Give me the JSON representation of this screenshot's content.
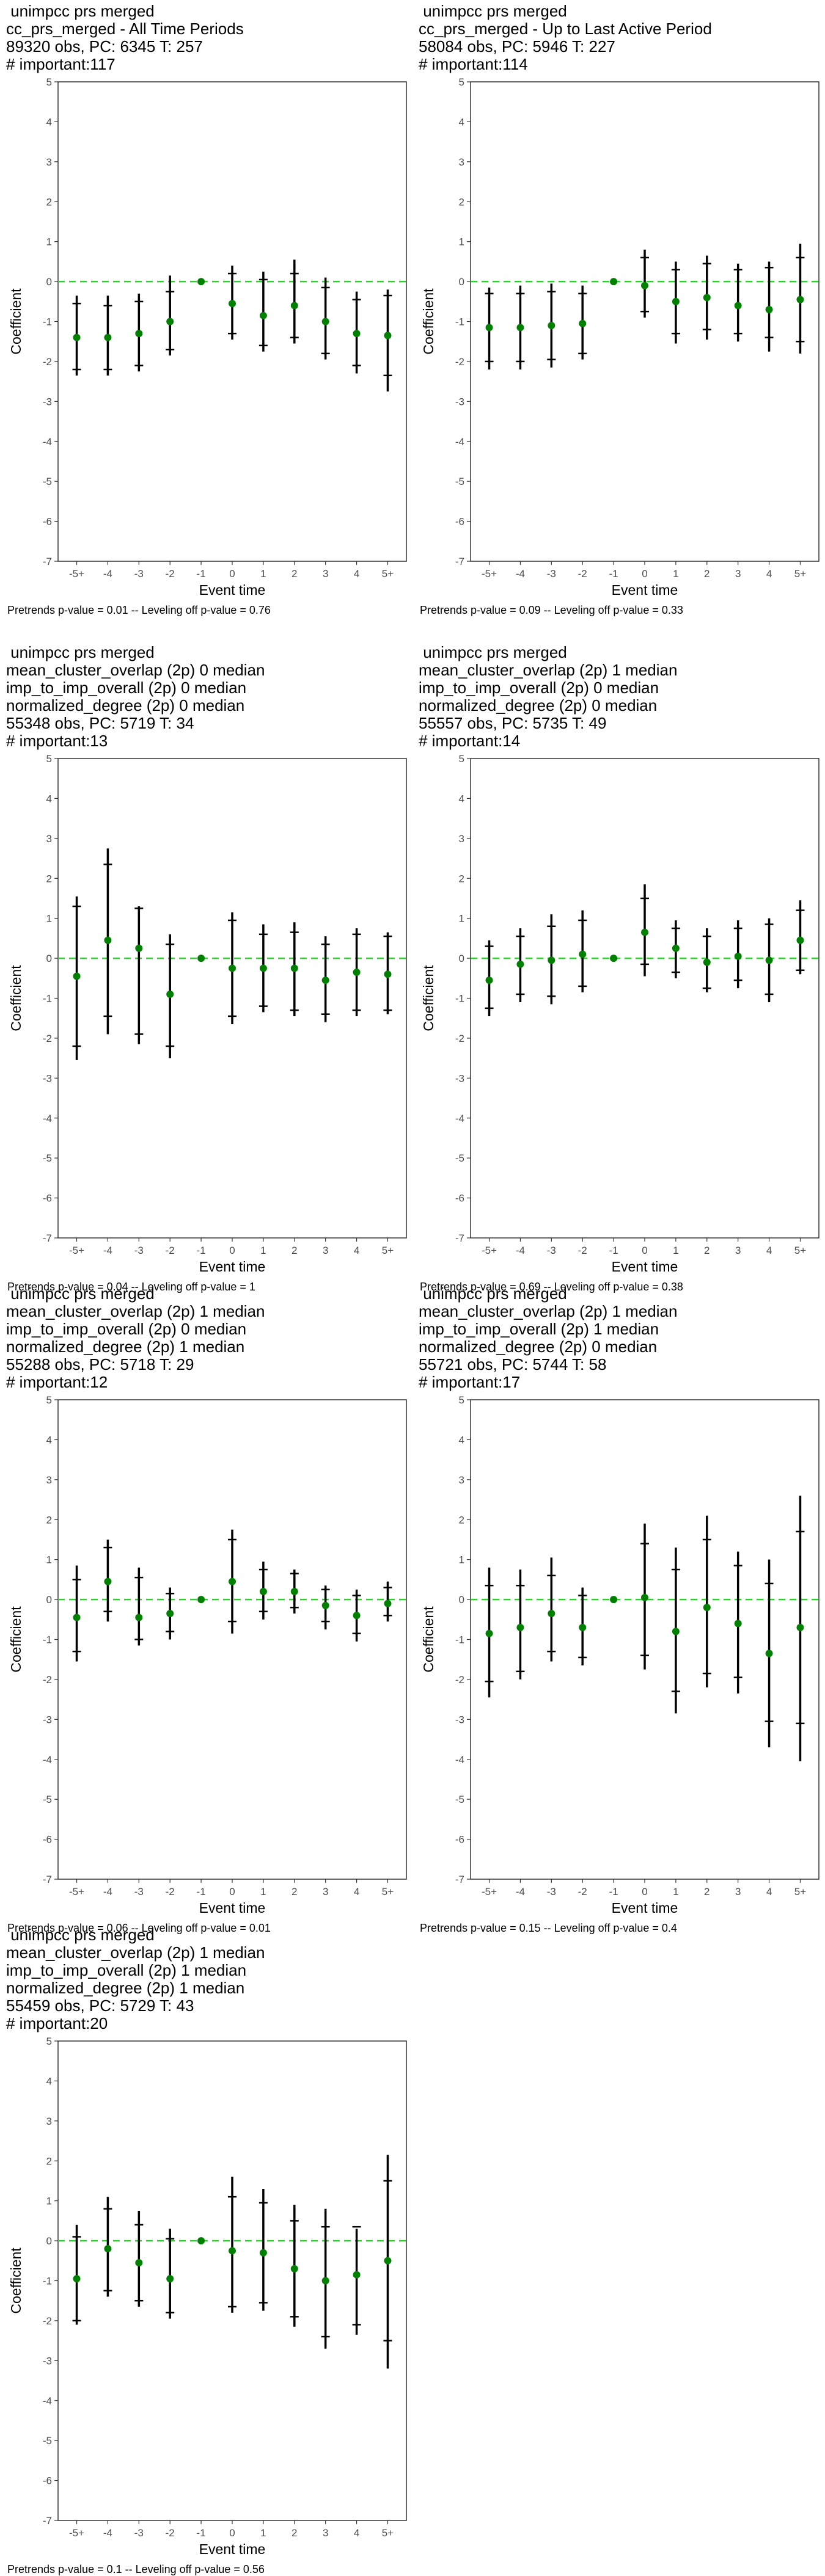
{
  "chart_data": [
    {
      "type": "errorbar",
      "title_lines": [
        " unimpcc prs merged",
        "cc_prs_merged - All Time Periods",
        "89320 obs, PC: 6345 T: 257",
        "# important:117"
      ],
      "xlabel": "Event time",
      "ylabel": "Coefficient",
      "categories": [
        "-5+",
        "-4",
        "-3",
        "-2",
        "-1",
        "0",
        "1",
        "2",
        "3",
        "4",
        "5+"
      ],
      "ylim": [
        -7,
        5
      ],
      "yticks": [
        "-7",
        "-6",
        "-5",
        "-4",
        "-3",
        "-2",
        "-1",
        "0",
        "1",
        "2",
        "3",
        "4",
        "5"
      ],
      "estimates": [
        -1.4,
        -1.4,
        -1.3,
        -1.0,
        0,
        -0.55,
        -0.85,
        -0.6,
        -1.0,
        -1.3,
        -1.35
      ],
      "ci90_low": [
        -2.2,
        -2.2,
        -2.1,
        -1.7,
        0,
        -1.3,
        -1.6,
        -1.4,
        -1.8,
        -2.1,
        -2.35
      ],
      "ci90_high": [
        -0.55,
        -0.6,
        -0.5,
        -0.25,
        0,
        0.2,
        0.05,
        0.2,
        -0.15,
        -0.45,
        -0.35
      ],
      "ci95_low": [
        -2.35,
        -2.35,
        -2.25,
        -1.85,
        0,
        -1.45,
        -1.75,
        -1.55,
        -1.95,
        -2.3,
        -2.75
      ],
      "ci95_high": [
        -0.35,
        -0.35,
        -0.3,
        0.15,
        0,
        0.4,
        0.25,
        0.55,
        0.1,
        -0.25,
        -0.2
      ],
      "reference_line": 0,
      "grid": false,
      "legend": "none",
      "point_color": "#008000",
      "bar_color": "#000000",
      "reference_color": "#33cc33",
      "footnote": "Pretrends p-value = 0.01 -- Leveling off p-value = 0.76"
    },
    {
      "type": "errorbar",
      "title_lines": [
        " unimpcc prs merged",
        "cc_prs_merged - Up to Last Active Period",
        "58084 obs, PC: 5946 T: 227",
        "# important:114"
      ],
      "xlabel": "Event time",
      "ylabel": "Coefficient",
      "categories": [
        "-5+",
        "-4",
        "-3",
        "-2",
        "-1",
        "0",
        "1",
        "2",
        "3",
        "4",
        "5+"
      ],
      "ylim": [
        -7,
        5
      ],
      "yticks": [
        "-7",
        "-6",
        "-5",
        "-4",
        "-3",
        "-2",
        "-1",
        "0",
        "1",
        "2",
        "3",
        "4",
        "5"
      ],
      "estimates": [
        -1.15,
        -1.15,
        -1.1,
        -1.05,
        0,
        -0.1,
        -0.5,
        -0.4,
        -0.6,
        -0.7,
        -0.45
      ],
      "ci90_low": [
        -2.0,
        -2.0,
        -1.95,
        -1.8,
        0,
        -0.75,
        -1.3,
        -1.2,
        -1.3,
        -1.4,
        -1.5
      ],
      "ci90_high": [
        -0.3,
        -0.3,
        -0.25,
        -0.3,
        0,
        0.6,
        0.3,
        0.45,
        0.3,
        0.35,
        0.6
      ],
      "ci95_low": [
        -2.2,
        -2.2,
        -2.15,
        -1.95,
        0,
        -0.9,
        -1.55,
        -1.45,
        -1.5,
        -1.75,
        -1.8
      ],
      "ci95_high": [
        -0.15,
        -0.1,
        -0.05,
        -0.1,
        0,
        0.8,
        0.5,
        0.65,
        0.45,
        0.5,
        0.95
      ],
      "reference_line": 0,
      "grid": false,
      "legend": "none",
      "point_color": "#008000",
      "bar_color": "#000000",
      "reference_color": "#33cc33",
      "footnote": "Pretrends p-value = 0.09 -- Leveling off p-value = 0.33"
    },
    {
      "type": "errorbar",
      "title_lines": [
        " unimpcc prs merged",
        "mean_cluster_overlap (2p) 0 median",
        "imp_to_imp_overall (2p) 0 median",
        "normalized_degree (2p) 0 median",
        "55348 obs, PC: 5719 T: 34",
        "# important:13"
      ],
      "xlabel": "Event time",
      "ylabel": "Coefficient",
      "categories": [
        "-5+",
        "-4",
        "-3",
        "-2",
        "-1",
        "0",
        "1",
        "2",
        "3",
        "4",
        "5+"
      ],
      "ylim": [
        -7,
        5
      ],
      "yticks": [
        "-7",
        "-6",
        "-5",
        "-4",
        "-3",
        "-2",
        "-1",
        "0",
        "1",
        "2",
        "3",
        "4",
        "5"
      ],
      "estimates": [
        -0.45,
        0.45,
        0.25,
        -0.9,
        0,
        -0.25,
        -0.25,
        -0.25,
        -0.55,
        -0.35,
        -0.4
      ],
      "ci90_low": [
        -2.2,
        -1.45,
        -1.9,
        -2.2,
        0,
        -1.45,
        -1.2,
        -1.3,
        -1.4,
        -1.3,
        -1.3
      ],
      "ci90_high": [
        1.3,
        2.35,
        1.25,
        0.35,
        0,
        0.95,
        0.6,
        0.65,
        0.35,
        0.6,
        0.55
      ],
      "ci95_low": [
        -2.55,
        -1.9,
        -2.15,
        -2.5,
        0,
        -1.65,
        -1.35,
        -1.45,
        -1.6,
        -1.45,
        -1.4
      ],
      "ci95_high": [
        1.55,
        2.75,
        1.3,
        0.6,
        0,
        1.15,
        0.85,
        0.9,
        0.55,
        0.75,
        0.65
      ],
      "reference_line": 0,
      "grid": false,
      "legend": "none",
      "point_color": "#008000",
      "bar_color": "#000000",
      "reference_color": "#33cc33",
      "footnote": "Pretrends p-value = 0.04 -- Leveling off p-value = 1"
    },
    {
      "type": "errorbar",
      "title_lines": [
        " unimpcc prs merged",
        "mean_cluster_overlap (2p) 1 median",
        "imp_to_imp_overall (2p) 0 median",
        "normalized_degree (2p) 0 median",
        "55557 obs, PC: 5735 T: 49",
        "# important:14"
      ],
      "xlabel": "Event time",
      "ylabel": "Coefficient",
      "categories": [
        "-5+",
        "-4",
        "-3",
        "-2",
        "-1",
        "0",
        "1",
        "2",
        "3",
        "4",
        "5+"
      ],
      "ylim": [
        -7,
        5
      ],
      "yticks": [
        "-7",
        "-6",
        "-5",
        "-4",
        "-3",
        "-2",
        "-1",
        "0",
        "1",
        "2",
        "3",
        "4",
        "5"
      ],
      "estimates": [
        -0.55,
        -0.15,
        -0.05,
        0.1,
        0,
        0.65,
        0.25,
        -0.1,
        0.05,
        -0.05,
        0.45
      ],
      "ci90_low": [
        -1.25,
        -0.9,
        -0.95,
        -0.7,
        0,
        -0.15,
        -0.35,
        -0.75,
        -0.55,
        -0.9,
        -0.3
      ],
      "ci90_high": [
        0.3,
        0.55,
        0.8,
        0.95,
        0,
        1.5,
        0.75,
        0.55,
        0.75,
        0.85,
        1.2
      ],
      "ci95_low": [
        -1.45,
        -1.1,
        -1.15,
        -0.85,
        0,
        -0.45,
        -0.5,
        -0.85,
        -0.75,
        -1.1,
        -0.4
      ],
      "ci95_high": [
        0.45,
        0.75,
        1.1,
        1.2,
        0,
        1.85,
        0.95,
        0.75,
        0.95,
        1.0,
        1.45
      ],
      "reference_line": 0,
      "grid": false,
      "legend": "none",
      "point_color": "#008000",
      "bar_color": "#000000",
      "reference_color": "#33cc33",
      "footnote": "Pretrends p-value = 0.69 -- Leveling off p-value = 0.38"
    },
    {
      "type": "errorbar",
      "title_lines": [
        " unimpcc prs merged",
        "mean_cluster_overlap (2p) 1 median",
        "imp_to_imp_overall (2p) 0 median",
        "normalized_degree (2p) 1 median",
        "55288 obs, PC: 5718 T: 29",
        "# important:12"
      ],
      "xlabel": "Event time",
      "ylabel": "Coefficient",
      "categories": [
        "-5+",
        "-4",
        "-3",
        "-2",
        "-1",
        "0",
        "1",
        "2",
        "3",
        "4",
        "5+"
      ],
      "ylim": [
        -7,
        5
      ],
      "yticks": [
        "-7",
        "-6",
        "-5",
        "-4",
        "-3",
        "-2",
        "-1",
        "0",
        "1",
        "2",
        "3",
        "4",
        "5"
      ],
      "estimates": [
        -0.45,
        0.45,
        -0.45,
        -0.35,
        0,
        0.45,
        0.2,
        0.2,
        -0.15,
        -0.4,
        -0.1
      ],
      "ci90_low": [
        -1.3,
        -0.3,
        -1.0,
        -0.8,
        0,
        -0.55,
        -0.3,
        -0.2,
        -0.55,
        -0.85,
        -0.4
      ],
      "ci90_high": [
        0.5,
        1.3,
        0.55,
        0.15,
        0,
        1.5,
        0.75,
        0.65,
        0.25,
        0.1,
        0.3
      ],
      "ci95_low": [
        -1.55,
        -0.55,
        -1.15,
        -1.0,
        0,
        -0.85,
        -0.5,
        -0.35,
        -0.75,
        -1.05,
        -0.55
      ],
      "ci95_high": [
        0.85,
        1.5,
        0.8,
        0.3,
        0,
        1.75,
        0.95,
        0.75,
        0.35,
        0.25,
        0.45
      ],
      "reference_line": 0,
      "grid": false,
      "legend": "none",
      "point_color": "#008000",
      "bar_color": "#000000",
      "reference_color": "#33cc33",
      "footnote": "Pretrends p-value = 0.06 -- Leveling off p-value = 0.01"
    },
    {
      "type": "errorbar",
      "title_lines": [
        " unimpcc prs merged",
        "mean_cluster_overlap (2p) 1 median",
        "imp_to_imp_overall (2p) 1 median",
        "normalized_degree (2p) 0 median",
        "55721 obs, PC: 5744 T: 58",
        "# important:17"
      ],
      "xlabel": "Event time",
      "ylabel": "Coefficient",
      "categories": [
        "-5+",
        "-4",
        "-3",
        "-2",
        "-1",
        "0",
        "1",
        "2",
        "3",
        "4",
        "5+"
      ],
      "ylim": [
        -7,
        5
      ],
      "yticks": [
        "-7",
        "-6",
        "-5",
        "-4",
        "-3",
        "-2",
        "-1",
        "0",
        "1",
        "2",
        "3",
        "4",
        "5"
      ],
      "estimates": [
        -0.85,
        -0.7,
        -0.35,
        -0.7,
        0,
        0.05,
        -0.8,
        -0.2,
        -0.6,
        -1.35,
        -0.7
      ],
      "ci90_low": [
        -2.05,
        -1.8,
        -1.3,
        -1.45,
        0,
        -1.4,
        -2.3,
        -1.85,
        -1.95,
        -3.05,
        -3.1
      ],
      "ci90_high": [
        0.35,
        0.35,
        0.6,
        0.1,
        0,
        1.4,
        0.75,
        1.5,
        0.85,
        0.4,
        1.7
      ],
      "ci95_low": [
        -2.45,
        -2.0,
        -1.55,
        -1.65,
        0,
        -1.75,
        -2.85,
        -2.2,
        -2.35,
        -3.7,
        -4.05
      ],
      "ci95_high": [
        0.8,
        0.75,
        1.05,
        0.3,
        0,
        1.9,
        1.3,
        2.1,
        1.2,
        1.0,
        2.6
      ],
      "reference_line": 0,
      "grid": false,
      "legend": "none",
      "point_color": "#008000",
      "bar_color": "#000000",
      "reference_color": "#33cc33",
      "footnote": "Pretrends p-value = 0.15 -- Leveling off p-value = 0.4"
    },
    {
      "type": "errorbar",
      "title_lines": [
        " unimpcc prs merged",
        "mean_cluster_overlap (2p) 1 median",
        "imp_to_imp_overall (2p) 1 median",
        "normalized_degree (2p) 1 median",
        "55459 obs, PC: 5729 T: 43",
        "# important:20"
      ],
      "xlabel": "Event time",
      "ylabel": "Coefficient",
      "categories": [
        "-5+",
        "-4",
        "-3",
        "-2",
        "-1",
        "0",
        "1",
        "2",
        "3",
        "4",
        "5+"
      ],
      "ylim": [
        -7,
        5
      ],
      "yticks": [
        "-7",
        "-6",
        "-5",
        "-4",
        "-3",
        "-2",
        "-1",
        "0",
        "1",
        "2",
        "3",
        "4",
        "5"
      ],
      "estimates": [
        -0.95,
        -0.2,
        -0.55,
        -0.95,
        0,
        -0.25,
        -0.3,
        -0.7,
        -1.0,
        -0.85,
        -0.5
      ],
      "ci90_low": [
        -2.0,
        -1.25,
        -1.5,
        -1.8,
        0,
        -1.65,
        -1.55,
        -1.9,
        -2.4,
        -2.1,
        -2.5
      ],
      "ci90_high": [
        0.1,
        0.8,
        0.4,
        0.05,
        0,
        1.1,
        0.95,
        0.5,
        0.35,
        0.35,
        1.5
      ],
      "ci95_low": [
        -2.1,
        -1.4,
        -1.65,
        -1.95,
        0,
        -1.8,
        -1.75,
        -2.15,
        -2.7,
        -2.35,
        -3.2
      ],
      "ci95_high": [
        0.4,
        1.1,
        0.75,
        0.3,
        0,
        1.6,
        1.3,
        0.9,
        0.8,
        0.3,
        2.15
      ],
      "reference_line": 0,
      "grid": false,
      "legend": "none",
      "point_color": "#008000",
      "bar_color": "#000000",
      "reference_color": "#33cc33",
      "footnote": "Pretrends p-value = 0.1 -- Leveling off p-value = 0.56"
    }
  ]
}
